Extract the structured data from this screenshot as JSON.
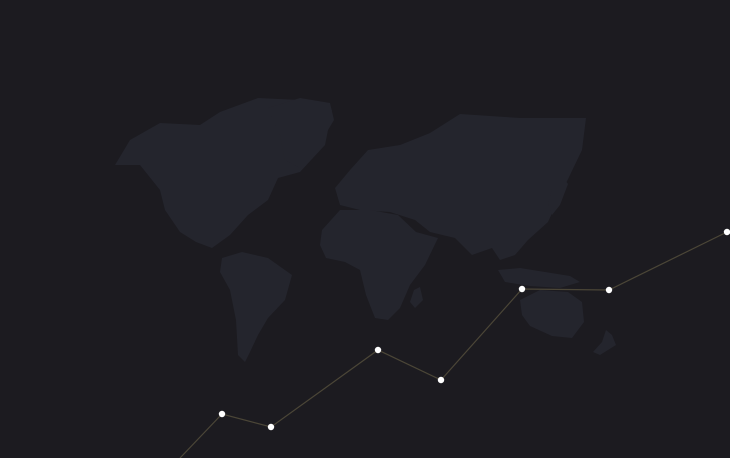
{
  "scene": {
    "background_color": "#1c1b20",
    "land_color": "#24252d",
    "route_color": "#4b4637",
    "node_color": "#ffffff",
    "node_count": 8
  }
}
